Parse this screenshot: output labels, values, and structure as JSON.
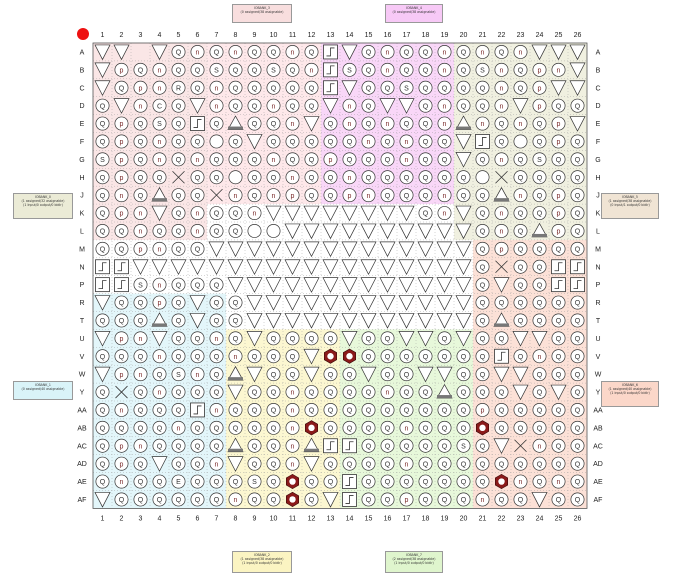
{
  "colors": {
    "marker": "#ee1111",
    "grid_line": "#555555",
    "gridline_dotted": "#999999",
    "special_fill": "#8b1a1a",
    "bank_0": "#f8dede",
    "bank_1": "#d9f3f8",
    "bank_2": "#fbf4c2",
    "bank_3": "#fde0e3",
    "bank_4": "#f7c9f6",
    "bank_5": "#f7dcca",
    "bank_6": "#ebebd6",
    "bank_7": "#dff5cd",
    "bank_8": "#fbd7c9"
  },
  "columns": [
    "1",
    "2",
    "3",
    "4",
    "5",
    "6",
    "7",
    "8",
    "9",
    "10",
    "11",
    "12",
    "13",
    "14",
    "15",
    "16",
    "17",
    "18",
    "19",
    "20",
    "21",
    "22",
    "23",
    "24",
    "25",
    "26"
  ],
  "rows": [
    "A",
    "B",
    "C",
    "D",
    "E",
    "F",
    "G",
    "H",
    "J",
    "K",
    "L",
    "M",
    "N",
    "P",
    "R",
    "T",
    "U",
    "V",
    "W",
    "Y",
    "AA",
    "AB",
    "AC",
    "AD",
    "AE",
    "AF"
  ],
  "banks": [
    {
      "id": "b3",
      "title": "IOBANK_3",
      "lines": [
        "(0 assigned/38 assignable)"
      ],
      "color": "#f8dede"
    },
    {
      "id": "b4",
      "title": "IOBANK_4",
      "lines": [
        "(0 assigned/38 assignable)"
      ],
      "color": "#f7c9f6"
    },
    {
      "id": "b0",
      "title": "IOBANK_0",
      "lines": [
        "(1 assigned/32 assignable)",
        "(1 Input/0 output/0 bidir)"
      ],
      "color": "#ebebd6"
    },
    {
      "id": "b5",
      "title": "IOBANK_5",
      "lines": [
        "(1 assigned/38 assignable)",
        "(0 input/1 output/0 bidir)"
      ],
      "color": "#f0e4d4"
    },
    {
      "id": "b1",
      "title": "IOBANK_1",
      "lines": [
        "(0 assigned/40 assignable)"
      ],
      "color": "#d9f3f8"
    },
    {
      "id": "b6",
      "title": "IOBANK_6",
      "lines": [
        "(1 assigned/40 assignable)",
        "(1 input/0 output/0 bidir)"
      ],
      "color": "#fbd7c9"
    },
    {
      "id": "b2",
      "title": "IOBANK_2",
      "lines": [
        "(1 assigned/38 assignable)",
        "(1 input/0 output/0 bidir)"
      ],
      "color": "#fbf4c2"
    },
    {
      "id": "b7",
      "title": "IOBANK_7",
      "lines": [
        "(2 assigned/38 assignable)",
        "(1 input/0 output/0 bidir)"
      ],
      "color": "#dff5cd"
    }
  ],
  "pin_map": [
    "TVqVQnQnQQnQLTQnQQnQnQnVTV",
    "TpQnQQSQQSQnLSQnQQnQSnQpnT",
    "VQpnRQnQQQQQLTQQSQQQQnQpVV",
    "QTnCQTnQQnQQTnQTTQnQQnTpQQ",
    "QpQSQLQMQQnTQnQnQQnMnQnQpV",
    "QpQnQQOQTQQQQQnQnQQTLQOQpQ",
    "SpQnQnQQQnQQpQQQnQQVQnQSQQ",
    "QpQQXQQOQQnQQnQQQQQQOXQQQQ",
    "QnQMQQXnQnpQQpnQQQnQQMnQpQ",
    "QpnVQnQQnVTTVTVTVQnTQnQQpQ",
    "QQnQQnQQOOTTTTTTTTTTQnQMpQ",
    "QQpnQQTTTTTTTTTTTTTTQpQQQQ",
    "LLVVVVVTTTTTTTTTTTTTQXQQLL",
    "LLSnQQQTTTTTTTTTTTTTQVQQLL",
    "TQQpQVQQTTTTTTTTTTTTQQQQQQ",
    "QQQMQTQQTTTTTTTTTTTTQMQQQQ",
    "TpnVQQnQVQQQQTQQTTQTQQVTQQ",
    "QQQnQQQnQQQTNNQQQQQQQLQnQQ",
    "TpnQSnQMTQQTQQTQQVTQQTTQQQ",
    "QXQnQQQVQQnQQQQnQQMQQQVQTQ",
    "QnQQQLnQQQnQQQQQQQQQpQQQQQ",
    "QQQQnQQQQQnHQQQQnQQQHQQQQQ",
    "QpnQQQQMQQnMLLQQQQQSQVXnQQ",
    "QpQVQQnTQQnVQQQQnQQQQQQQQQ",
    "QnQQEQQQSQHQQLQQQQQQQHnQnQ",
    "TQQQQQQnQQHQTLQQpQQQnQQTQQ"
  ],
  "legend_glyphs": {
    "Q": "io-pin",
    "n": "io-pin-n",
    "p": "io-pin-p",
    "S": "io-pin-s",
    "C": "io-pin-c",
    "R": "io-pin-r",
    "O": "plain-circle",
    "T": "power-triangle-down",
    "V": "power-triangle-down",
    "M": "ground-triangle-up",
    "X": "no-connect-cross",
    "L": "clock-square",
    "N": "assigned-hexagon",
    "H": "assigned-hexagon",
    "E": "special-e"
  },
  "glyph_text": {
    "Q": "Q",
    "n": "n",
    "p": "p",
    "S": "S",
    "C": "C",
    "R": "R",
    "E": "E"
  }
}
